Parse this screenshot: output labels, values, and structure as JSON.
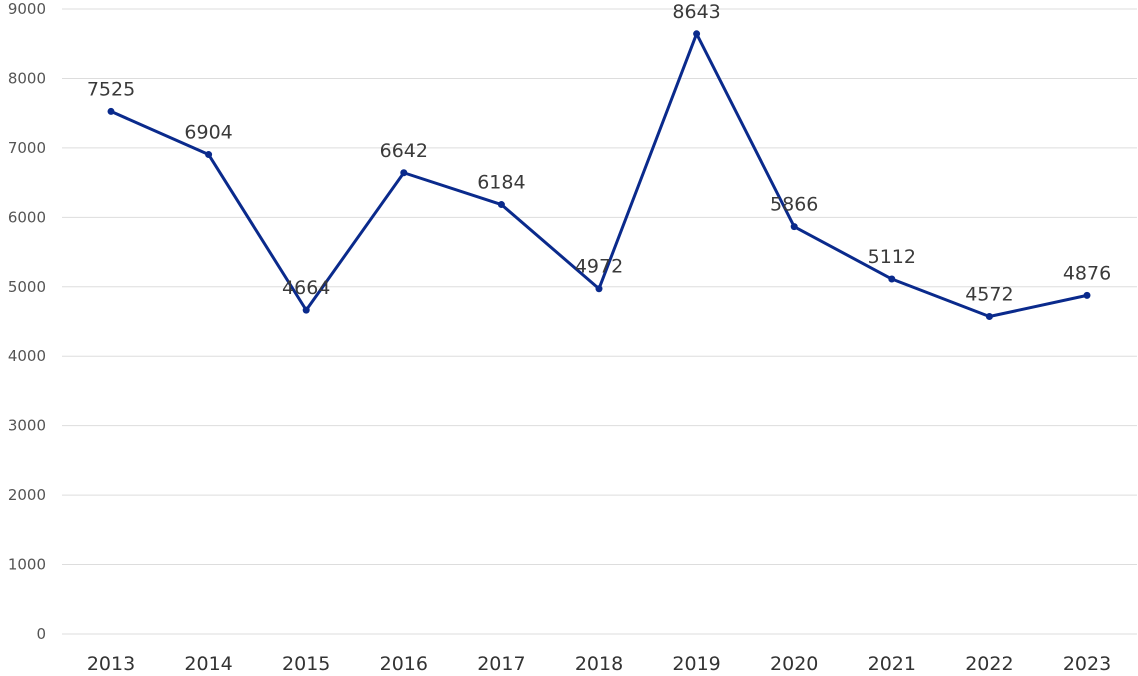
{
  "chart_data": {
    "type": "line",
    "categories": [
      "2013",
      "2014",
      "2015",
      "2016",
      "2017",
      "2018",
      "2019",
      "2020",
      "2021",
      "2022",
      "2023"
    ],
    "series": [
      {
        "values": [
          7525,
          6904,
          4664,
          6642,
          6184,
          4972,
          8643,
          5866,
          5112,
          4572,
          4876
        ],
        "color": "#0a2a8c"
      }
    ],
    "y_ticks": [
      "0",
      "1000",
      "2000",
      "3000",
      "4000",
      "5000",
      "6000",
      "7000",
      "8000",
      "9000"
    ],
    "ylim": [
      0,
      9000
    ],
    "grid": true,
    "legend": "none",
    "data_labels": true
  }
}
